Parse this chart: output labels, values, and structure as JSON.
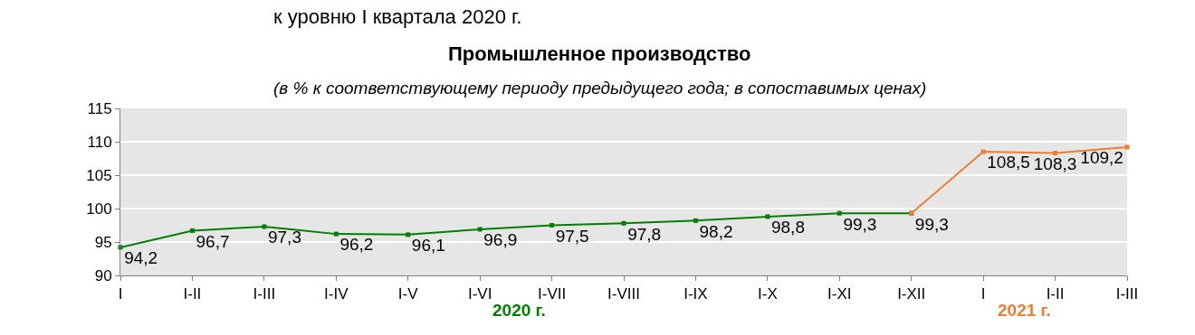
{
  "chart_data": {
    "type": "line",
    "title": "Промышленное производство",
    "subtitle": "(в % к соответствующему периоду предыдущего года; в сопоставимых ценах)",
    "categories": [
      "I",
      "I-II",
      "I-III",
      "I-IV",
      "I-V",
      "I-VI",
      "I-VII",
      "I-VIII",
      "I-IX",
      "I-X",
      "I-XI",
      "I-XII",
      "I",
      "I-II",
      "I-III"
    ],
    "series": [
      {
        "color": "#008000",
        "values": [
          94.2,
          96.7,
          97.3,
          96.2,
          96.1,
          96.9,
          97.5,
          97.8,
          98.2,
          98.8,
          99.3,
          99.3,
          null,
          null,
          null
        ],
        "value_labels": [
          "94,2",
          "96,7",
          "97,3",
          "96,2",
          "96,1",
          "96,9",
          "97,5",
          "97,8",
          "98,2",
          "98,8",
          "99,3",
          "99,3",
          null,
          null,
          null
        ]
      },
      {
        "color": "#ed7d31",
        "values": [
          null,
          null,
          null,
          null,
          null,
          null,
          null,
          null,
          null,
          null,
          null,
          99.3,
          108.5,
          108.3,
          109.2
        ],
        "value_labels": [
          null,
          null,
          null,
          null,
          null,
          null,
          null,
          null,
          null,
          null,
          null,
          null,
          "108,5",
          "108,3",
          "109,2"
        ]
      }
    ],
    "annotations": [
      "2020 г.",
      "2021 г.",
      "к уровню I квартала 2020 г."
    ],
    "ylim": [
      90,
      115
    ],
    "yticks": [
      90,
      95,
      100,
      105,
      110,
      115
    ],
    "grid": "y",
    "marker": "square"
  }
}
